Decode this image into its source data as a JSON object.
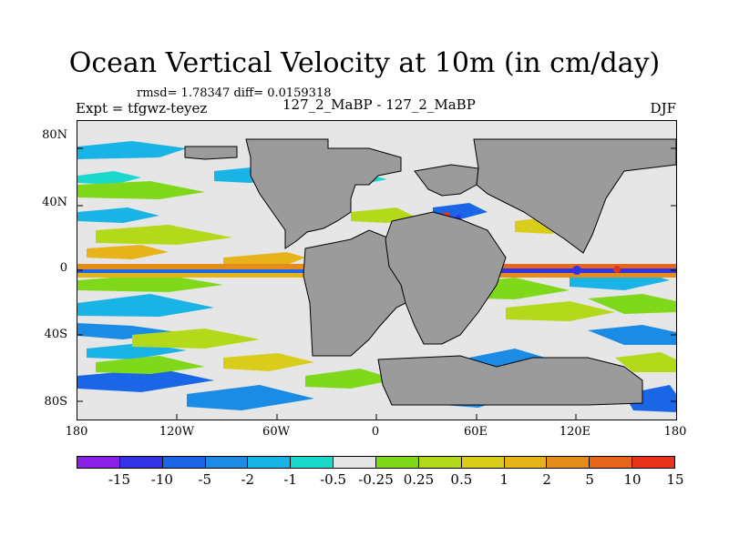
{
  "title": "Ocean Vertical Velocity at 10m (in cm/day)",
  "stats": "rmsd= 1.78347 diff= 0.0159318",
  "expt": "Expt = tfgwz-teyez",
  "center_label": "127_2_MaBP - 127_2_MaBP",
  "season": "DJF",
  "lat_labels": [
    "80N",
    "40N",
    "0",
    "40S",
    "80S"
  ],
  "lon_labels": [
    "180",
    "120W",
    "60W",
    "0",
    "60E",
    "120E",
    "180"
  ],
  "colorbar": {
    "colors": [
      "#8a1fe6",
      "#3333e6",
      "#1a66e6",
      "#1a8ce6",
      "#1ab3e6",
      "#1ad9cc",
      "#e6e6e6",
      "#7fd91a",
      "#b3d91a",
      "#d9cc1a",
      "#e6b31a",
      "#e68c1a",
      "#e6661a",
      "#e63319"
    ],
    "labels": [
      "-15",
      "-10",
      "-5",
      "-2",
      "-1",
      "-0.5",
      "-0.25",
      "0.25",
      "0.5",
      "1",
      "2",
      "5",
      "10",
      "15"
    ]
  }
}
